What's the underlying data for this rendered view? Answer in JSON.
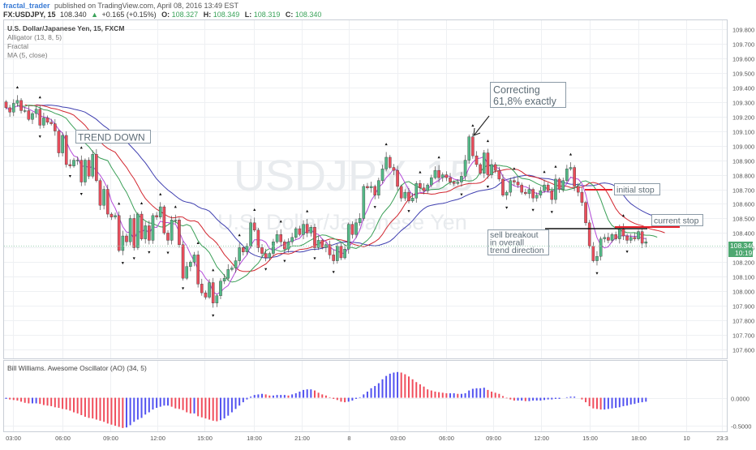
{
  "header": {
    "author": "fractal_trader",
    "published": "published on TradingView.com, April 08, 2016 13:49 EST",
    "symbol": "FX:USDJPY, 15",
    "last": "108.340",
    "arrow": "▲",
    "change": "+0.165 (+0.15%)",
    "o_label": "O:",
    "o_value": "108.327",
    "h_label": "H:",
    "h_value": "108.349",
    "l_label": "L:",
    "l_value": "108.319",
    "c_label": "C:",
    "c_value": "108.340"
  },
  "legend": {
    "title": "U.S. Dollar/Japanese Yen, 15, FXCM",
    "items": [
      "Alligator (13, 8, 5)",
      "Fractal",
      "MA (5, close)"
    ]
  },
  "watermark": {
    "symbol": "USDJPY, 15",
    "name": "U.S. Dollar/Japanese Yen"
  },
  "annotations": {
    "trend": "TREND DOWN",
    "correcting": [
      "Correcting",
      "61,8% exactly"
    ],
    "initial_stop": "initial stop",
    "current_stop": "current stop",
    "sell_breakout": [
      "sell breakout",
      "in overall",
      "trend direction"
    ]
  },
  "price_badge": {
    "value": "108.340",
    "countdown": "10:19"
  },
  "oscillator": {
    "title": "Bill Williams. Awesome Oscillator (AO) (34, 5)"
  },
  "colors": {
    "bull": "#53b987",
    "bear": "#eb4d5c",
    "ao_up": "#5252f0",
    "ao_down": "#f04d5c",
    "jaw": "#3f3fb0",
    "teeth": "#d2262f",
    "lips": "#3a9f57",
    "ma": "#b44ad8",
    "stop": "#e8202a"
  },
  "chart_data": {
    "type": "candlestick",
    "symbol": "FX:USDJPY",
    "interval": "15",
    "y_ticks": [
      "109.800",
      "109.700",
      "109.600",
      "109.500",
      "109.400",
      "109.300",
      "109.200",
      "109.100",
      "109.000",
      "108.900",
      "108.800",
      "108.700",
      "108.600",
      "108.500",
      "108.400",
      "108.300",
      "108.200",
      "108.100",
      "108.000",
      "107.900",
      "107.800",
      "107.700",
      "107.600"
    ],
    "x_ticks": [
      "03:00",
      "06:00",
      "09:00",
      "12:00",
      "15:00",
      "18:00",
      "21:00",
      "8",
      "03:00",
      "06:00",
      "09:00",
      "12:00",
      "15:00",
      "18:00",
      "10",
      "23:3"
    ],
    "ylim": [
      107.54,
      109.86
    ],
    "candle_close": [
      109.26,
      109.23,
      109.29,
      109.31,
      109.24,
      109.24,
      109.18,
      109.22,
      109.25,
      109.14,
      109.19,
      109.16,
      109.15,
      109.1,
      108.95,
      109.07,
      108.87,
      108.86,
      108.9,
      108.9,
      108.75,
      108.9,
      108.79,
      108.94,
      108.76,
      108.59,
      108.7,
      108.53,
      108.51,
      108.52,
      108.28,
      108.38,
      108.34,
      108.5,
      108.3,
      108.53,
      108.36,
      108.45,
      108.35,
      108.52,
      108.51,
      108.58,
      108.4,
      108.35,
      108.49,
      108.49,
      108.32,
      108.09,
      108.17,
      108.2,
      108.25,
      108.05,
      107.99,
      107.96,
      108.06,
      107.92,
      107.97,
      108.07,
      108.09,
      108.15,
      108.16,
      108.21,
      108.3,
      108.27,
      108.31,
      108.47,
      108.42,
      108.3,
      108.26,
      108.23,
      108.26,
      108.34,
      108.39,
      108.34,
      108.29,
      108.34,
      108.37,
      108.43,
      108.39,
      108.46,
      108.4,
      108.44,
      108.3,
      108.35,
      108.3,
      108.32,
      108.25,
      108.21,
      108.31,
      108.23,
      108.29,
      108.46,
      108.39,
      108.47,
      108.5,
      108.72,
      108.71,
      108.72,
      108.66,
      108.76,
      108.84,
      108.92,
      108.85,
      108.83,
      108.72,
      108.64,
      108.68,
      108.62,
      108.64,
      108.74,
      108.71,
      108.69,
      108.73,
      108.78,
      108.83,
      108.78,
      108.8,
      108.78,
      108.75,
      108.74,
      108.75,
      108.79,
      108.9,
      109.06,
      108.93,
      108.87,
      108.81,
      108.95,
      108.8,
      108.87,
      108.83,
      108.77,
      108.66,
      108.68,
      108.76,
      108.75,
      108.73,
      108.68,
      108.67,
      108.7,
      108.64,
      108.66,
      108.69,
      108.73,
      108.69,
      108.63,
      108.77,
      108.7,
      108.76,
      108.84,
      108.85,
      108.72,
      108.68,
      108.61,
      108.47,
      108.31,
      108.21,
      108.24,
      108.36,
      108.37,
      108.35,
      108.39,
      108.36,
      108.43,
      108.38,
      108.35,
      108.37,
      108.36,
      108.41,
      108.33,
      108.34
    ],
    "ao_values": [
      -0.02,
      -0.03,
      -0.04,
      -0.05,
      -0.07,
      -0.09,
      -0.1,
      -0.1,
      -0.1,
      -0.11,
      -0.13,
      -0.14,
      -0.15,
      -0.17,
      -0.18,
      -0.2,
      -0.21,
      -0.23,
      -0.26,
      -0.28,
      -0.31,
      -0.34,
      -0.36,
      -0.37,
      -0.39,
      -0.41,
      -0.43,
      -0.46,
      -0.48,
      -0.5,
      -0.52,
      -0.54,
      -0.53,
      -0.49,
      -0.43,
      -0.39,
      -0.36,
      -0.3,
      -0.26,
      -0.21,
      -0.18,
      -0.16,
      -0.14,
      -0.14,
      -0.16,
      -0.19,
      -0.2,
      -0.22,
      -0.26,
      -0.28,
      -0.28,
      -0.33,
      -0.35,
      -0.37,
      -0.39,
      -0.41,
      -0.42,
      -0.4,
      -0.37,
      -0.32,
      -0.26,
      -0.2,
      -0.14,
      -0.08,
      -0.03,
      0.02,
      0.05,
      0.06,
      0.07,
      0.06,
      0.04,
      0.04,
      0.05,
      0.05,
      0.05,
      0.04,
      0.06,
      0.08,
      0.11,
      0.14,
      0.15,
      0.15,
      0.13,
      0.09,
      0.06,
      0.04,
      0.01,
      -0.02,
      -0.04,
      -0.07,
      -0.08,
      -0.07,
      -0.05,
      -0.02,
      0.01,
      0.06,
      0.11,
      0.17,
      0.21,
      0.26,
      0.33,
      0.39,
      0.43,
      0.45,
      0.46,
      0.45,
      0.42,
      0.38,
      0.33,
      0.28,
      0.24,
      0.2,
      0.15,
      0.13,
      0.11,
      0.1,
      0.09,
      0.08,
      0.08,
      0.08,
      0.07,
      0.07,
      0.08,
      0.13,
      0.16,
      0.17,
      0.17,
      0.18,
      0.14,
      0.11,
      0.09,
      0.07,
      0.03,
      -0.01,
      -0.03,
      -0.05,
      -0.05,
      -0.05,
      -0.06,
      -0.06,
      -0.05,
      -0.05,
      -0.05,
      -0.04,
      -0.03,
      -0.03,
      -0.02,
      -0.02,
      0.0,
      0.01,
      0.02,
      0.02,
      0.0,
      -0.03,
      -0.08,
      -0.15,
      -0.19,
      -0.2,
      -0.21,
      -0.21,
      -0.2,
      -0.19,
      -0.18,
      -0.17,
      -0.15,
      -0.14,
      -0.12,
      -0.11,
      -0.09,
      -0.08,
      -0.07
    ],
    "ao_ticks": [
      "0.0000",
      "-0.5000"
    ],
    "ao_ylim": [
      -0.6,
      0.66
    ]
  }
}
